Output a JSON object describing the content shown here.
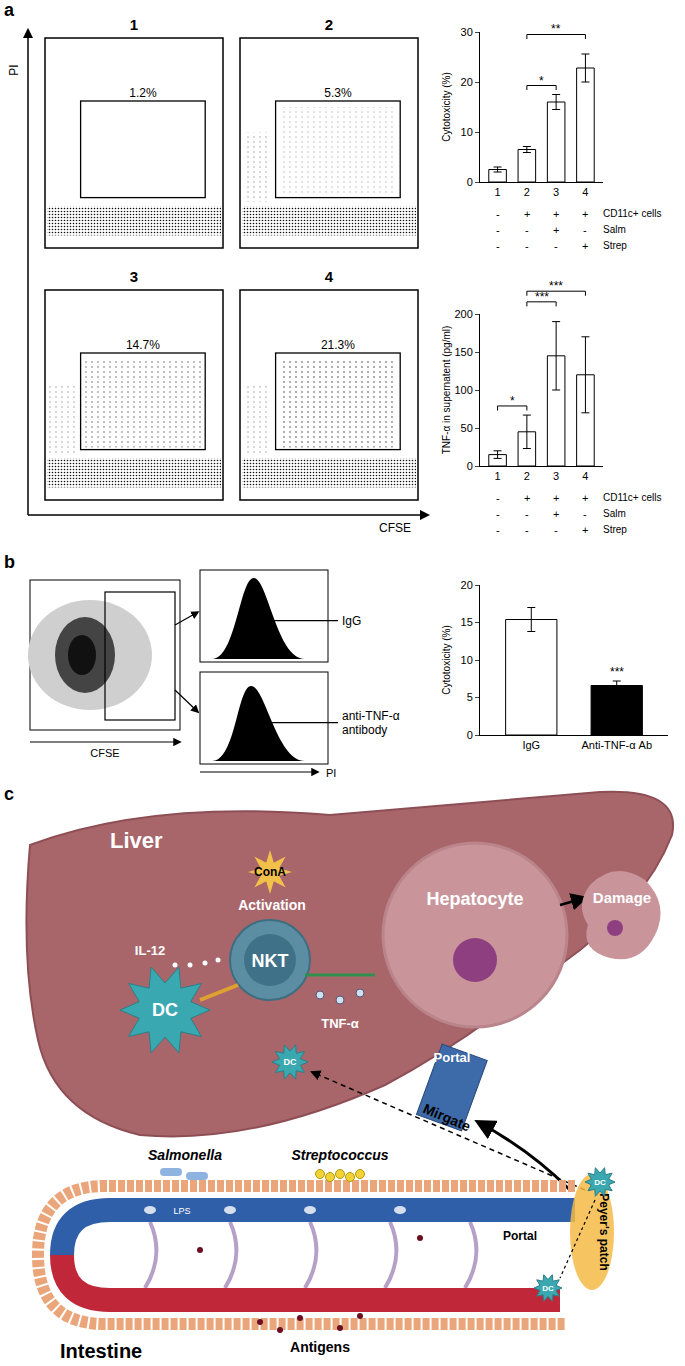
{
  "panel_labels": [
    "a",
    "b",
    "c"
  ],
  "chart_data": [
    {
      "type": "bar",
      "categories": [
        "1",
        "2",
        "3",
        "4"
      ],
      "values": [
        2.5,
        6.5,
        16,
        22.8
      ],
      "errors": [
        0.5,
        0.6,
        1.5,
        2.8
      ],
      "color": "#ffffff",
      "y_label": "Cytotoxicity (%)",
      "ylim": [
        0,
        30
      ],
      "yticks": [
        0,
        10,
        20,
        30
      ],
      "significance": [
        {
          "between": [
            "2",
            "3"
          ],
          "label": "*"
        },
        {
          "between": [
            "2",
            "4"
          ],
          "label": "**"
        }
      ],
      "conditions": [
        {
          "label": "CD11c+ cells",
          "signs": [
            "-",
            "+",
            "+",
            "+"
          ]
        },
        {
          "label": "Salm",
          "signs": [
            "-",
            "-",
            "+",
            "-"
          ]
        },
        {
          "label": "Strep",
          "signs": [
            "-",
            "-",
            "-",
            "+"
          ]
        }
      ]
    },
    {
      "type": "bar",
      "categories": [
        "1",
        "2",
        "3",
        "4"
      ],
      "values": [
        15,
        45,
        145,
        120
      ],
      "errors": [
        5,
        22,
        45,
        50
      ],
      "color": "#ffffff",
      "y_label": "TNF-α in supernatent (pg/ml)",
      "ylim": [
        0,
        200
      ],
      "yticks": [
        0,
        50,
        100,
        150,
        200
      ],
      "significance": [
        {
          "between": [
            "1",
            "2"
          ],
          "label": "*"
        },
        {
          "between": [
            "2",
            "3"
          ],
          "label": "***"
        },
        {
          "between": [
            "2",
            "4"
          ],
          "label": "***"
        }
      ],
      "conditions": [
        {
          "label": "CD11c+ cells",
          "signs": [
            "-",
            "+",
            "+",
            "+"
          ]
        },
        {
          "label": "Salm",
          "signs": [
            "-",
            "-",
            "+",
            "-"
          ]
        },
        {
          "label": "Strep",
          "signs": [
            "-",
            "-",
            "-",
            "+"
          ]
        }
      ]
    },
    {
      "type": "bar",
      "categories": [
        "IgG",
        "Anti-TNF-α Ab"
      ],
      "values": [
        15.4,
        6.6
      ],
      "errors": [
        1.6,
        0.6
      ],
      "colors": [
        "#ffffff",
        "#000000"
      ],
      "y_label": "Cytotoxicity (%)",
      "ylim": [
        0,
        20
      ],
      "yticks": [
        0,
        5,
        10,
        15,
        20
      ],
      "annotations": [
        {
          "category": "Anti-TNF-α Ab",
          "label": "***"
        }
      ]
    }
  ],
  "dot_plots": {
    "x_label": "CFSE",
    "y_label": "PI",
    "plots": [
      {
        "label": "1",
        "gate": "1.2%"
      },
      {
        "label": "2",
        "gate": "5.3%"
      },
      {
        "label": "3",
        "gate": "14.7%"
      },
      {
        "label": "4",
        "gate": "21.3%"
      }
    ]
  },
  "panel_b_flow": {
    "x_label": "CFSE",
    "y_label": "PI",
    "histograms": [
      "IgG",
      "anti-TNF-α antibody"
    ]
  },
  "diagram": {
    "liver": "Liver",
    "cona": "ConA",
    "activation": "Activation",
    "il12": "IL-12",
    "nkt": "NKT",
    "dc": "DC",
    "hepatocyte": "Hepatocyte",
    "damage": "Damage",
    "tnf": "TNF-α",
    "portal": "Portal",
    "migrate": "Mirgate",
    "peyers": "Peyer's patch",
    "salmonella": "Salmonella",
    "streptococcus": "Streptococcus",
    "lps": "LPS",
    "antigens": "Antigens",
    "intestine": "Intestine"
  }
}
